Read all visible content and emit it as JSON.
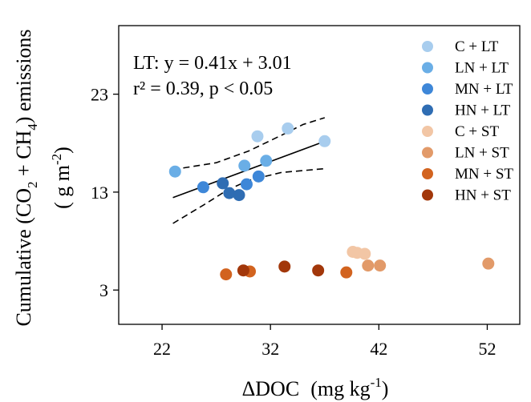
{
  "chart_data": {
    "type": "scatter",
    "xlabel_main": "ΔDOC",
    "xlabel_unit_pre": "(mg kg",
    "xlabel_unit_sup": "-1",
    "xlabel_unit_post": ")",
    "ylabel_line1_pre": "Cumulative  (CO",
    "ylabel_line1_sub1": "2",
    "ylabel_line1_mid": " + CH",
    "ylabel_line1_sub2": "4",
    "ylabel_line1_post": ") emissions",
    "ylabel_line2_pre": "( g m",
    "ylabel_line2_sup": "-2",
    "ylabel_line2_post": ")",
    "xlim": [
      18,
      55
    ],
    "ylim": [
      -0.5,
      30
    ],
    "xticks": [
      22,
      32,
      42,
      52
    ],
    "yticks": [
      3,
      13,
      23
    ],
    "annotation": {
      "line1": "LT: y = 0.41x + 3.01",
      "line2": "r² = 0.39, p < 0.05"
    },
    "fit": {
      "series_group": "LT",
      "slope": 0.41,
      "intercept": 3.01,
      "x_range": [
        23,
        37
      ]
    },
    "confidence_band": {
      "upper": [
        [
          23,
          15.3
        ],
        [
          27,
          16.0
        ],
        [
          30,
          17.2
        ],
        [
          33,
          18.8
        ],
        [
          35,
          19.9
        ],
        [
          37,
          20.6
        ]
      ],
      "lower": [
        [
          23,
          9.8
        ],
        [
          26,
          11.8
        ],
        [
          28,
          13.2
        ],
        [
          30,
          14.2
        ],
        [
          33,
          15.0
        ],
        [
          37,
          15.4
        ]
      ]
    },
    "series": [
      {
        "name": "C + LT",
        "color": "#a8cdee",
        "points": [
          [
            30.8,
            18.7
          ],
          [
            33.6,
            19.5
          ],
          [
            37.0,
            18.2
          ]
        ]
      },
      {
        "name": "LN + LT",
        "color": "#6aaee6",
        "points": [
          [
            23.2,
            15.1
          ],
          [
            29.6,
            15.7
          ],
          [
            31.6,
            16.2
          ]
        ]
      },
      {
        "name": "MN + LT",
        "color": "#3e87d8",
        "points": [
          [
            25.8,
            13.5
          ],
          [
            29.8,
            13.8
          ],
          [
            30.9,
            14.6
          ]
        ]
      },
      {
        "name": "HN + LT",
        "color": "#2f6db3",
        "points": [
          [
            27.6,
            13.9
          ],
          [
            28.2,
            12.9
          ],
          [
            29.1,
            12.7
          ]
        ]
      },
      {
        "name": "C + ST",
        "color": "#f2c6a5",
        "points": [
          [
            39.6,
            6.9
          ],
          [
            40.0,
            6.8
          ],
          [
            40.7,
            6.7
          ]
        ]
      },
      {
        "name": "LN + ST",
        "color": "#e29a69",
        "points": [
          [
            41.0,
            5.5
          ],
          [
            42.1,
            5.5
          ],
          [
            52.1,
            5.7
          ]
        ]
      },
      {
        "name": "MN + ST",
        "color": "#d2631f",
        "points": [
          [
            27.9,
            4.6
          ],
          [
            30.1,
            4.9
          ],
          [
            39.0,
            4.8
          ]
        ]
      },
      {
        "name": "HN + ST",
        "color": "#a2370a",
        "points": [
          [
            29.5,
            5.0
          ],
          [
            33.3,
            5.4
          ],
          [
            36.4,
            5.0
          ]
        ]
      }
    ]
  }
}
